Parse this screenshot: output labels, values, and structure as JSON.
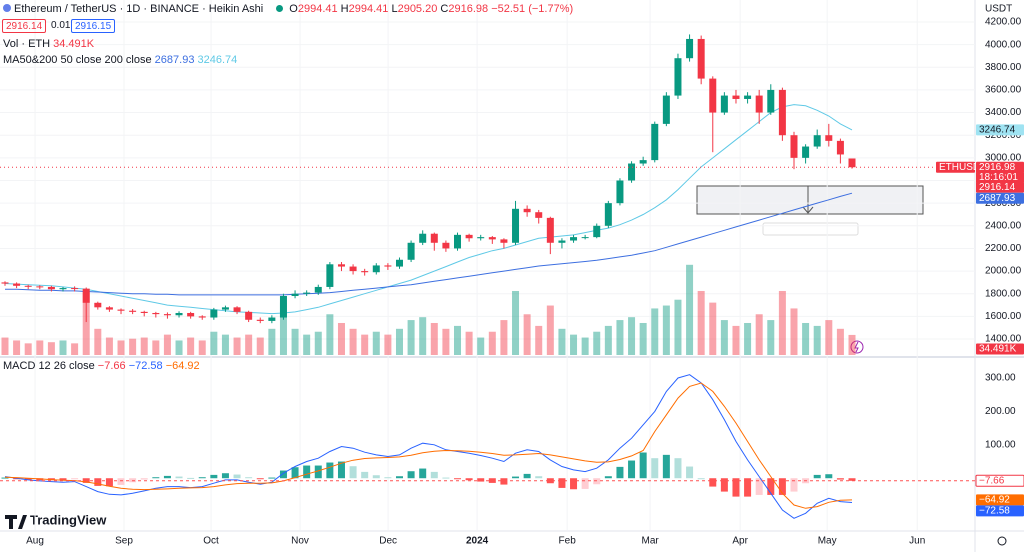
{
  "header": {
    "symbol": "Ethereum / TetherUS · 1D · BINANCE · Heikin Ashi",
    "o": "O",
    "h": "H",
    "l": "L",
    "c": "C",
    "open": "2994.41",
    "high": "2994.41",
    "low": "2905.20",
    "close": "2916.98",
    "change": "−52.51 (−1.77%)",
    "bid": 2916.14,
    "spread": 0.01,
    "ask": 2916.15,
    "currency": "USDT",
    "vol_legend": "Vol · ETH",
    "ma_legend": "MA50&200 50 close 200 close",
    "macd_legend": "MACD 12 26 close",
    "brand": "TradingView"
  },
  "chart_data": [
    {
      "type": "candlestick",
      "symbol_tag": "ETHUSDT",
      "countdown": "18:16:01",
      "up_color": "#089981",
      "down_color": "#f23645",
      "grid": true,
      "open": [
        1900,
        1890,
        1870,
        1865,
        1860,
        1840,
        1850,
        1845,
        1720,
        1680,
        1660,
        1650,
        1640,
        1630,
        1620,
        1610,
        1630,
        1600,
        1590,
        1660,
        1680,
        1640,
        1570,
        1560,
        1590,
        1780,
        1800,
        1810,
        1860,
        2060,
        2040,
        2000,
        1990,
        2050,
        2040,
        2100,
        2250,
        2330,
        2250,
        2200,
        2320,
        2290,
        2300,
        2280,
        2250,
        2550,
        2520,
        2470,
        2250,
        2270,
        2300,
        2300,
        2400,
        2600,
        2800,
        2950,
        2980,
        3300,
        3550,
        3880,
        4050,
        3700,
        3400,
        3550,
        3520,
        3550,
        3400,
        3600,
        3200,
        3000,
        3100,
        3200,
        3150,
        2994.41
      ],
      "high": [
        1910,
        1900,
        1880,
        1875,
        1870,
        1860,
        1865,
        1855,
        1730,
        1690,
        1670,
        1665,
        1650,
        1640,
        1635,
        1645,
        1640,
        1610,
        1675,
        1695,
        1690,
        1650,
        1590,
        1610,
        1800,
        1830,
        1830,
        1880,
        2080,
        2080,
        2060,
        2020,
        2070,
        2070,
        2120,
        2270,
        2360,
        2340,
        2270,
        2340,
        2330,
        2320,
        2310,
        2290,
        2620,
        2580,
        2540,
        2480,
        2290,
        2320,
        2320,
        2420,
        2620,
        2820,
        2970,
        3010,
        3320,
        3580,
        3920,
        4090,
        4080,
        3720,
        3580,
        3600,
        3580,
        3600,
        3650,
        3620,
        3230,
        3120,
        3250,
        3300,
        3170,
        2994.41
      ],
      "low": [
        1870,
        1850,
        1840,
        1840,
        1820,
        1820,
        1820,
        1550,
        1660,
        1640,
        1620,
        1620,
        1600,
        1590,
        1580,
        1590,
        1580,
        1570,
        1570,
        1640,
        1620,
        1550,
        1540,
        1540,
        1570,
        1760,
        1780,
        1790,
        1840,
        2000,
        1970,
        1960,
        1970,
        2010,
        2020,
        2080,
        2230,
        2180,
        2170,
        2180,
        2260,
        2270,
        2240,
        2200,
        2230,
        2480,
        2420,
        2150,
        2200,
        2250,
        2280,
        2290,
        2380,
        2580,
        2780,
        2930,
        2960,
        3280,
        3520,
        3850,
        3650,
        3050,
        3380,
        3480,
        3480,
        3300,
        3380,
        3150,
        2900,
        2950,
        3080,
        3100,
        2950,
        2905.2
      ],
      "close": [
        1890,
        1870,
        1865,
        1860,
        1840,
        1850,
        1845,
        1720,
        1680,
        1660,
        1650,
        1640,
        1630,
        1620,
        1610,
        1630,
        1600,
        1590,
        1660,
        1680,
        1640,
        1570,
        1560,
        1590,
        1780,
        1800,
        1810,
        1860,
        2060,
        2040,
        2000,
        1990,
        2050,
        2040,
        2100,
        2250,
        2330,
        2250,
        2200,
        2320,
        2290,
        2300,
        2280,
        2250,
        2550,
        2520,
        2470,
        2250,
        2270,
        2300,
        2300,
        2400,
        2600,
        2800,
        2950,
        2980,
        3300,
        3550,
        3880,
        4050,
        3700,
        3400,
        3550,
        3520,
        3550,
        3400,
        3600,
        3200,
        3000,
        3100,
        3200,
        3150,
        3030,
        2916.98
      ],
      "series": [
        {
          "color": "#5fc9e6",
          "values": [
            1890,
            1885,
            1880,
            1875,
            1870,
            1860,
            1850,
            1840,
            1820,
            1800,
            1780,
            1760,
            1740,
            1720,
            1700,
            1690,
            1680,
            1670,
            1660,
            1650,
            1640,
            1635,
            1630,
            1625,
            1630,
            1640,
            1660,
            1680,
            1710,
            1740,
            1770,
            1800,
            1830,
            1860,
            1890,
            1920,
            1960,
            2000,
            2040,
            2080,
            2120,
            2150,
            2180,
            2200,
            2230,
            2260,
            2290,
            2300,
            2310,
            2320,
            2340,
            2360,
            2380,
            2410,
            2450,
            2500,
            2560,
            2630,
            2720,
            2820,
            2920,
            3000,
            3080,
            3160,
            3240,
            3320,
            3400,
            3450,
            3470,
            3460,
            3420,
            3370,
            3300,
            3246.74
          ]
        },
        {
          "color": "#3d6fe0",
          "values": [
            1840,
            1840,
            1835,
            1830,
            1830,
            1825,
            1825,
            1820,
            1815,
            1810,
            1805,
            1800,
            1800,
            1795,
            1795,
            1790,
            1790,
            1790,
            1790,
            1790,
            1790,
            1790,
            1790,
            1790,
            1790,
            1795,
            1800,
            1805,
            1810,
            1820,
            1830,
            1840,
            1850,
            1860,
            1870,
            1880,
            1895,
            1910,
            1925,
            1940,
            1955,
            1970,
            1985,
            2000,
            2015,
            2030,
            2045,
            2055,
            2065,
            2075,
            2085,
            2095,
            2110,
            2125,
            2140,
            2160,
            2180,
            2210,
            2240,
            2270,
            2300,
            2330,
            2360,
            2390,
            2420,
            2450,
            2480,
            2510,
            2540,
            2570,
            2600,
            2630,
            2660,
            2687.93
          ]
        }
      ],
      "xlim": [
        -0.43,
        83.6
      ],
      "xticks": [
        {
          "value": 2.59,
          "label": "Aug"
        },
        {
          "value": 10.26,
          "label": "Sep"
        },
        {
          "value": 17.76,
          "label": "Oct"
        },
        {
          "value": 25.43,
          "label": "Nov"
        },
        {
          "value": 33.02,
          "label": "Dec"
        },
        {
          "value": 40.69,
          "label": "2024"
        },
        {
          "value": 48.45,
          "label": "Feb"
        },
        {
          "value": 55.6,
          "label": "Mar"
        },
        {
          "value": 63.36,
          "label": "Apr"
        },
        {
          "value": 70.86,
          "label": "May"
        },
        {
          "value": 78.62,
          "label": "Jun"
        }
      ],
      "ylim": [
        1259,
        4394
      ],
      "yticks": [
        {
          "value": 4200,
          "label": "4200.00"
        },
        {
          "value": 4000,
          "label": "4000.00"
        },
        {
          "value": 3800,
          "label": "3800.00"
        },
        {
          "value": 3600,
          "label": "3600.00"
        },
        {
          "value": 3400,
          "label": "3400.00"
        },
        {
          "value": 3200,
          "label": "3200.00"
        },
        {
          "value": 3000,
          "label": "3000.00"
        },
        {
          "value": 2800,
          "label": "2800.00"
        },
        {
          "value": 2600,
          "label": "2600.00"
        },
        {
          "value": 2400,
          "label": "2400.00"
        },
        {
          "value": 2200,
          "label": "2200.00"
        },
        {
          "value": 2000,
          "label": "2000.00"
        },
        {
          "value": 1800,
          "label": "1800.00"
        },
        {
          "value": 1600,
          "label": "1600.00"
        },
        {
          "value": 1400,
          "label": "1400.00"
        }
      ]
    },
    {
      "type": "bar",
      "last_label": "34.491K",
      "ylim": [
        0,
        610
      ],
      "values": [
        30,
        25,
        20,
        25,
        22,
        25,
        20,
        110,
        45,
        30,
        25,
        28,
        30,
        25,
        35,
        25,
        30,
        25,
        40,
        35,
        30,
        35,
        30,
        45,
        90,
        45,
        35,
        40,
        70,
        55,
        45,
        35,
        40,
        35,
        45,
        60,
        65,
        55,
        45,
        50,
        40,
        30,
        40,
        60,
        110,
        70,
        50,
        85,
        45,
        35,
        30,
        40,
        50,
        60,
        65,
        55,
        80,
        85,
        95,
        155,
        110,
        90,
        60,
        50,
        55,
        70,
        60,
        110,
        80,
        55,
        50,
        60,
        45,
        34.491
      ]
    },
    {
      "type": "macd",
      "ylim": [
        -155,
        354
      ],
      "yticks": [
        {
          "value": 300,
          "label": "300.00"
        },
        {
          "value": 200,
          "label": "200.00"
        },
        {
          "value": 100,
          "label": "100.00"
        }
      ],
      "histogram": {
        "colors": [
          "#26a69a",
          "#b2dfdb",
          "#ff5252",
          "#ffcdd2"
        ],
        "last_label": "−7.66",
        "values": [
          2,
          -2,
          -5,
          -6,
          -6,
          -6,
          -3,
          -14,
          -23,
          -24,
          -20,
          -12,
          -4,
          3,
          7,
          5,
          1,
          3,
          10,
          15,
          11,
          3,
          -3,
          2,
          23,
          33,
          38,
          38,
          47,
          50,
          36,
          19,
          9,
          3,
          6,
          21,
          29,
          19,
          2,
          -2,
          -6,
          -10,
          -14,
          -19,
          5,
          13,
          6,
          -15,
          -29,
          -33,
          -32,
          -18,
          6,
          34,
          53,
          77,
          60,
          70,
          60,
          35,
          0,
          -25,
          -40,
          -55,
          -55,
          -50,
          -50,
          -50,
          -40,
          -15,
          10,
          12,
          -4,
          -7.66
        ]
      },
      "series": [
        {
          "color": "#2962ff",
          "last_label": "−72.58",
          "values": [
            5,
            0,
            -5,
            -8,
            -10,
            -12,
            -10,
            -25,
            -40,
            -48,
            -50,
            -45,
            -38,
            -30,
            -25,
            -25,
            -28,
            -25,
            -15,
            -5,
            -5,
            -12,
            -18,
            -12,
            15,
            35,
            50,
            60,
            80,
            95,
            90,
            78,
            70,
            65,
            70,
            90,
            105,
            100,
            85,
            80,
            75,
            68,
            60,
            50,
            75,
            85,
            80,
            55,
            35,
            25,
            20,
            30,
            55,
            90,
            120,
            160,
            200,
            260,
            300,
            310,
            285,
            235,
            175,
            110,
            55,
            5,
            -45,
            -95,
            -120,
            -105,
            -75,
            -60,
            -70,
            -72.58
          ]
        },
        {
          "color": "#ff6d00",
          "last_label": "−64.92",
          "values": [
            3,
            2,
            0,
            -2,
            -4,
            -6,
            -7,
            -11,
            -17,
            -24,
            -30,
            -33,
            -34,
            -33,
            -32,
            -30,
            -29,
            -28,
            -25,
            -20,
            -16,
            -15,
            -15,
            -14,
            -8,
            2,
            12,
            22,
            33,
            45,
            54,
            59,
            61,
            62,
            64,
            69,
            76,
            81,
            83,
            82,
            81,
            78,
            74,
            69,
            70,
            72,
            74,
            70,
            64,
            58,
            52,
            48,
            49,
            56,
            67,
            83,
            140,
            190,
            240,
            275,
            285,
            260,
            215,
            165,
            110,
            55,
            5,
            -45,
            -80,
            -90,
            -85,
            -72,
            -66,
            -64.92
          ]
        }
      ]
    }
  ]
}
